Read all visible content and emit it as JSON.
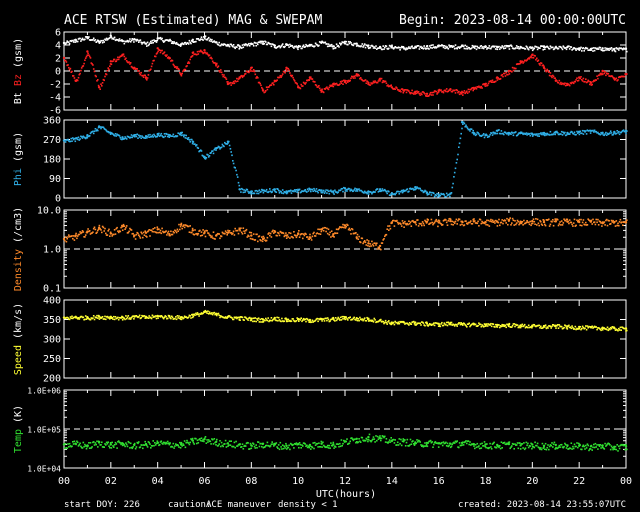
{
  "header": {
    "title": "ACE RTSW (Estimated) MAG & SWEPAM",
    "begin": "Begin: 2023-08-14 00:00:00UTC"
  },
  "footer": {
    "start_doy": "start DOY: 226",
    "caution_label": "caution:",
    "caution_maneuver": "ACE maneuver",
    "caution_density": "density < 1",
    "created": "created: 2023-08-14 23:55:07UTC"
  },
  "colors": {
    "bt": "#ffffff",
    "bz": "#ff2020",
    "phi": "#30b0e8",
    "density": "#ff8a2a",
    "speed": "#ffff33",
    "temp": "#30e030",
    "caution_maneuver": "#ffff33",
    "caution_density": "#ff8a2a"
  },
  "chart_data": [
    {
      "type": "scatter",
      "ylabel_parts": [
        "Bt",
        "Bz",
        "(gsm)"
      ],
      "ylim": [
        -6,
        6
      ],
      "yticks": [
        "-6",
        "-4",
        "-2",
        "0",
        "2",
        "4",
        "6"
      ],
      "reference_line": 0,
      "series": [
        {
          "name": "Bt",
          "color": "#ffffff",
          "x": [
            0,
            0.5,
            1,
            1.5,
            2,
            2.5,
            3,
            3.5,
            4,
            4.5,
            5,
            5.5,
            6,
            6.5,
            7,
            7.5,
            8,
            8.5,
            9,
            9.5,
            10,
            10.5,
            11,
            11.5,
            12,
            12.5,
            13,
            13.5,
            14,
            14.5,
            15,
            15.5,
            16,
            16.5,
            17,
            17.5,
            18,
            18.5,
            19,
            19.5,
            20,
            20.5,
            21,
            21.5,
            22,
            22.5,
            23,
            23.5,
            24
          ],
          "y": [
            4.3,
            4.8,
            5.2,
            4.5,
            5.4,
            4.6,
            4.9,
            4.2,
            5.0,
            4.7,
            4.1,
            4.8,
            5.2,
            4.4,
            4.0,
            3.8,
            4.2,
            4.5,
            3.9,
            4.1,
            3.7,
            4.0,
            4.4,
            3.8,
            4.5,
            4.2,
            3.9,
            3.7,
            3.8,
            3.6,
            3.7,
            3.8,
            3.9,
            3.8,
            3.9,
            3.7,
            3.8,
            3.7,
            3.8,
            3.7,
            3.6,
            3.7,
            3.6,
            3.7,
            3.5,
            3.4,
            3.5,
            3.4,
            3.4
          ]
        },
        {
          "name": "Bz",
          "color": "#ff2020",
          "x": [
            0,
            0.5,
            1,
            1.5,
            2,
            2.5,
            3,
            3.5,
            4,
            4.5,
            5,
            5.5,
            6,
            6.5,
            7,
            7.5,
            8,
            8.5,
            9,
            9.5,
            10,
            10.5,
            11,
            11.5,
            12,
            12.5,
            13,
            13.5,
            14,
            14.5,
            15,
            15.5,
            16,
            16.5,
            17,
            17.5,
            18,
            18.5,
            19,
            19.5,
            20,
            20.5,
            21,
            21.5,
            22,
            22.5,
            23,
            23.5,
            24
          ],
          "y": [
            2.0,
            -1.5,
            3.0,
            -2.5,
            1.5,
            2.5,
            0.5,
            -1.0,
            3.5,
            2.0,
            -0.5,
            2.8,
            3.2,
            1.0,
            -2.0,
            -1.0,
            0.5,
            -3.0,
            -1.5,
            0.5,
            -2.5,
            -1.0,
            -3.0,
            -2.0,
            -1.5,
            -0.5,
            -2.0,
            -1.2,
            -2.5,
            -3.0,
            -3.2,
            -3.5,
            -3.0,
            -2.8,
            -3.3,
            -2.6,
            -2.0,
            -1.0,
            0.0,
            1.5,
            2.5,
            0.5,
            -1.5,
            -2.0,
            -1.0,
            -1.8,
            0.0,
            -1.2,
            -0.5
          ]
        }
      ]
    },
    {
      "type": "scatter",
      "ylabel_parts": [
        "Phi",
        "(gsm)"
      ],
      "ylim": [
        0,
        360
      ],
      "yticks": [
        "0",
        "90",
        "180",
        "270",
        "360"
      ],
      "series": [
        {
          "name": "Phi",
          "color": "#30b0e8",
          "x": [
            0,
            0.5,
            1,
            1.5,
            2,
            2.5,
            3,
            3.5,
            4,
            4.5,
            5,
            5.5,
            6,
            6.5,
            7,
            7.5,
            8,
            8.5,
            9,
            9.5,
            10,
            10.5,
            11,
            11.5,
            12,
            12.5,
            13,
            13.5,
            14,
            14.5,
            15,
            15.5,
            16,
            16.5,
            17,
            17.5,
            18,
            18.5,
            19,
            19.5,
            20,
            20.5,
            21,
            21.5,
            22,
            22.5,
            23,
            23.5,
            24
          ],
          "y": [
            265,
            275,
            290,
            330,
            300,
            280,
            290,
            285,
            295,
            290,
            300,
            260,
            190,
            230,
            260,
            40,
            30,
            35,
            40,
            30,
            35,
            40,
            35,
            30,
            45,
            40,
            30,
            40,
            20,
            35,
            50,
            25,
            15,
            20,
            350,
            300,
            290,
            310,
            300,
            300,
            295,
            300,
            305,
            300,
            305,
            310,
            300,
            305,
            310
          ]
        }
      ]
    },
    {
      "type": "scatter",
      "ylabel_parts": [
        "Density",
        "(/cm3)"
      ],
      "yscale": "log",
      "ylim": [
        0.1,
        10
      ],
      "yticks": [
        "0.1",
        "1.0",
        "10.0"
      ],
      "reference_line": 1.0,
      "series": [
        {
          "name": "Density",
          "color": "#ff8a2a",
          "x": [
            0,
            0.5,
            1,
            1.5,
            2,
            2.5,
            3,
            3.5,
            4,
            4.5,
            5,
            5.5,
            6,
            6.5,
            7,
            7.5,
            8,
            8.5,
            9,
            9.5,
            10,
            10.5,
            11,
            11.5,
            12,
            12.5,
            13,
            13.5,
            14,
            14.5,
            15,
            15.5,
            16,
            16.5,
            17,
            17.5,
            18,
            18.5,
            19,
            19.5,
            20,
            20.5,
            21,
            21.5,
            22,
            22.5,
            23,
            23.5,
            24
          ],
          "y": [
            1.8,
            2.2,
            2.8,
            3.5,
            2.5,
            3.8,
            2.2,
            2.6,
            3.2,
            2.4,
            4.2,
            3.0,
            2.6,
            2.2,
            2.6,
            3.2,
            2.2,
            1.8,
            2.8,
            2.2,
            2.5,
            2.0,
            3.2,
            2.4,
            4.0,
            2.0,
            1.4,
            1.2,
            4.8,
            4.6,
            4.9,
            5.0,
            4.8,
            5.2,
            5.0,
            5.1,
            4.9,
            5.0,
            5.3,
            5.0,
            5.2,
            4.9,
            5.1,
            5.0,
            4.9,
            5.0,
            4.8,
            4.9,
            4.8
          ]
        }
      ]
    },
    {
      "type": "scatter",
      "ylabel_parts": [
        "Speed",
        "(km/s)"
      ],
      "ylim": [
        200,
        400
      ],
      "yticks": [
        "200",
        "250",
        "300",
        "350",
        "400"
      ],
      "series": [
        {
          "name": "Speed",
          "color": "#ffff33",
          "x": [
            0,
            0.5,
            1,
            1.5,
            2,
            2.5,
            3,
            3.5,
            4,
            4.5,
            5,
            5.5,
            6,
            6.5,
            7,
            7.5,
            8,
            8.5,
            9,
            9.5,
            10,
            10.5,
            11,
            11.5,
            12,
            12.5,
            13,
            13.5,
            14,
            14.5,
            15,
            15.5,
            16,
            16.5,
            17,
            17.5,
            18,
            18.5,
            19,
            19.5,
            20,
            20.5,
            21,
            21.5,
            22,
            22.5,
            23,
            23.5,
            24
          ],
          "y": [
            355,
            357,
            356,
            358,
            357,
            356,
            358,
            357,
            359,
            358,
            356,
            362,
            370,
            364,
            357,
            355,
            352,
            350,
            354,
            350,
            351,
            349,
            351,
            352,
            356,
            353,
            352,
            348,
            342,
            343,
            342,
            340,
            339,
            341,
            338,
            339,
            337,
            336,
            337,
            335,
            334,
            333,
            334,
            332,
            331,
            330,
            329,
            328,
            327
          ]
        }
      ]
    },
    {
      "type": "scatter",
      "ylabel_parts": [
        "Temp",
        "(K)"
      ],
      "yscale": "log",
      "ylim": [
        10000,
        1000000
      ],
      "yticks": [
        "1.0E+04",
        "1.0E+05",
        "1.0E+06"
      ],
      "reference_line": 100000,
      "series": [
        {
          "name": "Temp",
          "color": "#30e030",
          "x": [
            0,
            0.5,
            1,
            1.5,
            2,
            2.5,
            3,
            3.5,
            4,
            4.5,
            5,
            5.5,
            6,
            6.5,
            7,
            7.5,
            8,
            8.5,
            9,
            9.5,
            10,
            10.5,
            11,
            11.5,
            12,
            12.5,
            13,
            13.5,
            14,
            14.5,
            15,
            15.5,
            16,
            16.5,
            17,
            17.5,
            18,
            18.5,
            19,
            19.5,
            20,
            20.5,
            21,
            21.5,
            22,
            22.5,
            23,
            23.5,
            24
          ],
          "y": [
            40000,
            42000,
            38000,
            45000,
            40000,
            43000,
            39000,
            41000,
            44000,
            42000,
            40000,
            50000,
            55000,
            47000,
            43000,
            40000,
            38000,
            42000,
            40000,
            37000,
            41000,
            39000,
            42000,
            40000,
            48000,
            56000,
            62000,
            58000,
            50000,
            48000,
            45000,
            44000,
            43000,
            42000,
            44000,
            41000,
            40000,
            39000,
            41000,
            38000,
            40000,
            37000,
            39000,
            38000,
            37000,
            36000,
            38000,
            35000,
            36000
          ]
        }
      ]
    }
  ],
  "xaxis": {
    "label": "UTC(hours)",
    "xlim": [
      0,
      24
    ],
    "tick_labels": [
      "00",
      "02",
      "04",
      "06",
      "08",
      "10",
      "12",
      "14",
      "16",
      "18",
      "20",
      "22",
      "00"
    ],
    "highlight_tick": "14"
  }
}
